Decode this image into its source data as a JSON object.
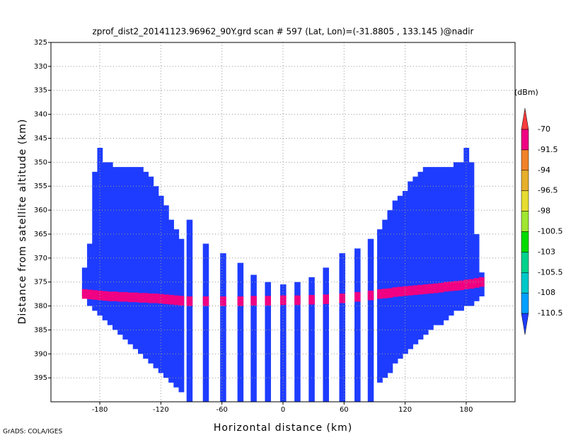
{
  "chart_data": {
    "type": "beam-field",
    "title": "zprof_dist2_20141123.96962_90Y.grd  scan # 597  (Lat, Lon)=(-31.8805 , 133.145 )@nadir",
    "x_label": "Horizontal distance (km)",
    "y_label": "Distance from satellite altitude (km)",
    "footer": "GrADS: COLA/IGES",
    "xlim": [
      -228,
      228
    ],
    "ylim": [
      325,
      400
    ],
    "y_inverted": true,
    "xticks": [
      -180,
      -120,
      -60,
      0,
      60,
      120,
      180
    ],
    "yticks": [
      325,
      330,
      335,
      340,
      345,
      350,
      355,
      360,
      365,
      370,
      375,
      380,
      385,
      390,
      395
    ],
    "grid": true,
    "colorbar": {
      "label": "(dBm)",
      "levels": [
        -70,
        -91.5,
        -94,
        -96.5,
        -98,
        -100.5,
        -103,
        -105.5,
        -108,
        -110.5
      ],
      "colors": [
        "#fa3c3c",
        "#f00082",
        "#f08228",
        "#e6af2d",
        "#e6dc32",
        "#a0e632",
        "#00dc00",
        "#00d28c",
        "#00c8c8",
        "#00a0ff",
        "#1e3cff"
      ]
    },
    "field": {
      "x": [
        -195,
        -190,
        -185,
        -180,
        -175,
        -170,
        -165,
        -160,
        -155,
        -150,
        -145,
        -140,
        -135,
        -130,
        -125,
        -120,
        -115,
        -110,
        -105,
        -100,
        -92,
        -76,
        -59,
        -42,
        -29,
        -15,
        0,
        14,
        28,
        42,
        58,
        73,
        86,
        95,
        100,
        105,
        110,
        115,
        120,
        125,
        130,
        135,
        140,
        145,
        150,
        155,
        160,
        165,
        170,
        175,
        180,
        185,
        190,
        195
      ],
      "top": [
        372,
        367,
        352,
        347,
        350,
        350,
        351,
        351,
        351,
        351,
        351,
        351,
        352,
        353,
        355,
        357,
        359,
        362,
        364,
        366,
        362,
        367,
        369,
        371,
        373.5,
        375,
        375.5,
        375,
        374,
        372,
        369,
        368,
        366,
        364,
        362,
        360,
        358,
        357,
        356,
        354,
        353,
        352,
        351,
        351,
        351,
        351,
        351,
        351,
        350,
        350,
        347,
        350,
        365,
        373
      ],
      "bottom": [
        378,
        380,
        381,
        382,
        383,
        384,
        385,
        386,
        387,
        388,
        389,
        390,
        391,
        392,
        393,
        394,
        395,
        396,
        397,
        398,
        400,
        400,
        400,
        400,
        400,
        400,
        400,
        400,
        400,
        400,
        400,
        400,
        400,
        396,
        395,
        394,
        392,
        391,
        390,
        389,
        388,
        387,
        386,
        385,
        384,
        384,
        383,
        382,
        381,
        381,
        380,
        380,
        379,
        378
      ],
      "surface": [
        377.5,
        377.6,
        377.7,
        377.8,
        377.9,
        378,
        378,
        378.1,
        378.1,
        378.2,
        378.2,
        378.3,
        378.3,
        378.4,
        378.4,
        378.5,
        378.6,
        378.7,
        378.8,
        378.9,
        379,
        379,
        379,
        379,
        378.9,
        378.9,
        378.8,
        378.8,
        378.7,
        378.6,
        378.4,
        378.1,
        377.8,
        377.5,
        377.4,
        377.3,
        377.1,
        377,
        376.9,
        376.8,
        376.7,
        376.6,
        376.5,
        376.4,
        376.3,
        376.2,
        376,
        375.9,
        375.8,
        375.7,
        375.5,
        375.4,
        375.2,
        375
      ],
      "noise_value": -111,
      "surface_value": -80
    }
  }
}
